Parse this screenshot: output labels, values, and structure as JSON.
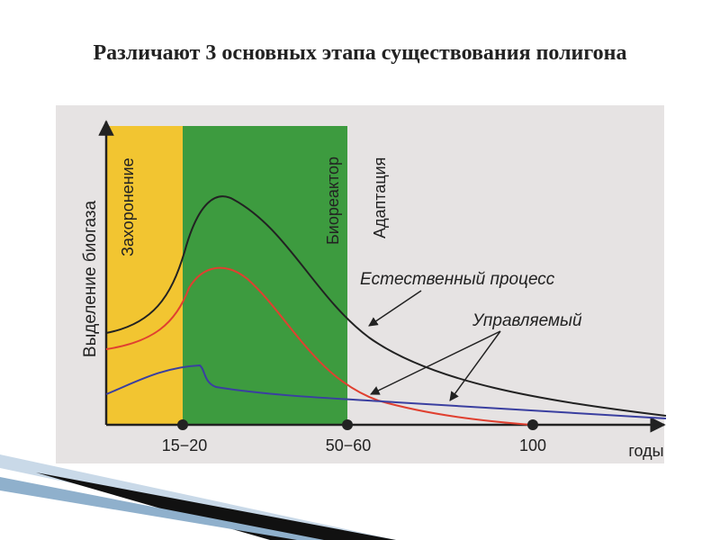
{
  "title": "Различают 3 основных этапа существования полигона",
  "diagram": {
    "y_axis_label": "Выделение биогаза",
    "x_axis_label": "годы",
    "x_ticks": [
      "15−20",
      "50−60",
      "100"
    ],
    "zones": [
      "Захоронение",
      "Биореактор",
      "Адаптация"
    ],
    "curve_labels": [
      "Естественный процесс",
      "Управляемый"
    ]
  }
}
